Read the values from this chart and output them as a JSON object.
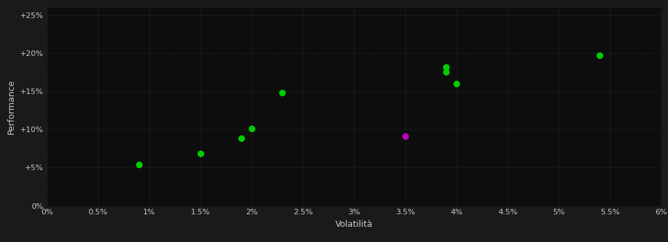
{
  "background_color": "#1a1a1a",
  "plot_bg_color": "#0d0d0d",
  "text_color": "#cccccc",
  "xlabel": "Volatilità",
  "ylabel": "Performance",
  "xlim": [
    0.0,
    0.06
  ],
  "ylim": [
    0.0,
    0.26
  ],
  "xticks": [
    0.0,
    0.005,
    0.01,
    0.015,
    0.02,
    0.025,
    0.03,
    0.035,
    0.04,
    0.045,
    0.05,
    0.055,
    0.06
  ],
  "yticks": [
    0.0,
    0.05,
    0.1,
    0.15,
    0.2,
    0.25
  ],
  "green_points": [
    [
      0.009,
      0.054
    ],
    [
      0.015,
      0.068
    ],
    [
      0.019,
      0.088
    ],
    [
      0.02,
      0.101
    ],
    [
      0.023,
      0.148
    ],
    [
      0.039,
      0.182
    ],
    [
      0.039,
      0.175
    ],
    [
      0.04,
      0.16
    ],
    [
      0.054,
      0.197
    ]
  ],
  "magenta_points": [
    [
      0.035,
      0.091
    ]
  ],
  "point_size": 35
}
